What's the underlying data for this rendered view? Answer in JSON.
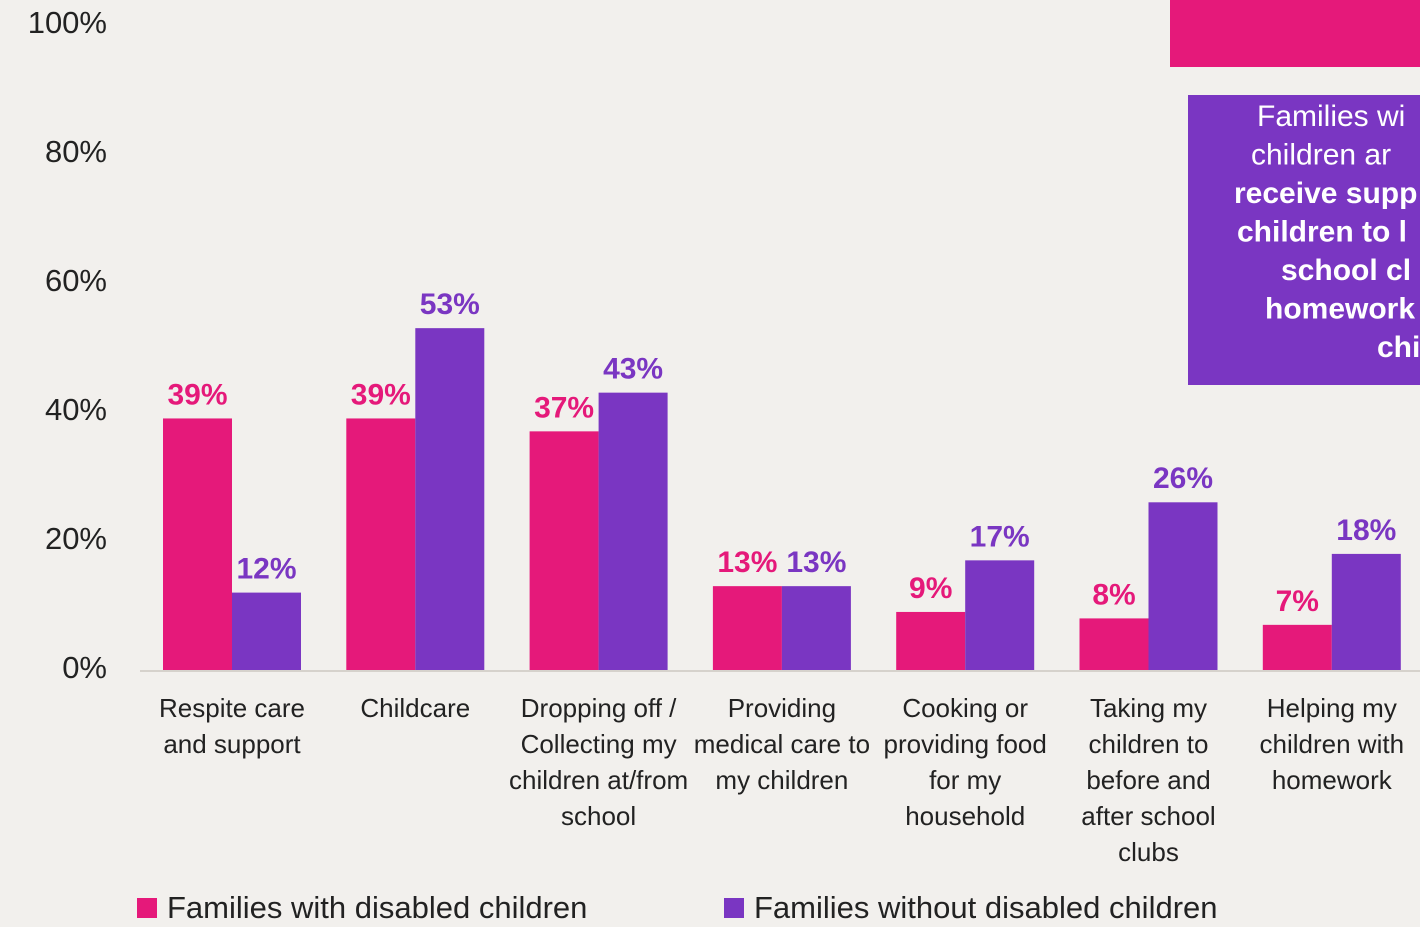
{
  "chart_data": {
    "type": "bar",
    "categories": [
      "Respite care and support",
      "Childcare",
      "Dropping off / Collecting my children at/from school",
      "Providing medical care to my children",
      "Cooking or providing food for my household",
      "Taking my children to before and after school clubs",
      "Helping my children with homework"
    ],
    "series": [
      {
        "name": "Families with disabled children",
        "color": "#e5197a",
        "values": [
          39,
          39,
          37,
          13,
          9,
          8,
          7
        ],
        "value_labels": [
          "39%",
          "39%",
          "37%",
          "13%",
          "9%",
          "8%",
          "7%"
        ]
      },
      {
        "name": "Families without disabled children",
        "color": "#7a36c2",
        "values": [
          12,
          53,
          43,
          13,
          17,
          26,
          18
        ],
        "value_labels": [
          "12%",
          "53%",
          "43%",
          "13%",
          "17%",
          "26%",
          "18%"
        ]
      }
    ],
    "ylim": [
      0,
      100
    ],
    "yticks": [
      {
        "value": 0,
        "label": "0%"
      },
      {
        "value": 20,
        "label": "20%"
      },
      {
        "value": 40,
        "label": "40%"
      },
      {
        "value": 60,
        "label": "60%"
      },
      {
        "value": 80,
        "label": "80%"
      },
      {
        "value": 100,
        "label": "100%"
      }
    ],
    "legend": "bottom",
    "annotation": {
      "lines": [
        "Families wi",
        "children ar",
        "receive supp",
        "children to l",
        "school cl",
        "homework",
        "chi"
      ]
    }
  }
}
